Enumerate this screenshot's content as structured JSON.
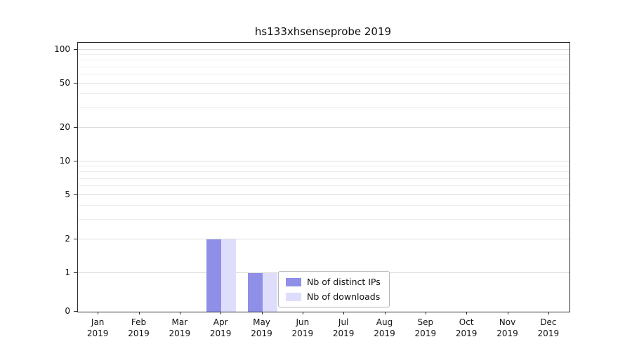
{
  "title": "hs133xhsenseprobe 2019",
  "colors": {
    "distinct_ips": "#8f8fe8",
    "downloads": "#dedefc",
    "major_grid": "#dcdcdc",
    "minor_grid": "#ededed",
    "axis": "#2a2a2a"
  },
  "legend": {
    "entries": [
      {
        "label": "Nb of distinct IPs",
        "color_key": "distinct_ips"
      },
      {
        "label": "Nb of downloads",
        "color_key": "downloads"
      }
    ]
  },
  "chart_data": {
    "type": "bar",
    "title": "hs133xhsenseprobe 2019",
    "categories": [
      "Jan",
      "Feb",
      "Mar",
      "Apr",
      "May",
      "Jun",
      "Jul",
      "Aug",
      "Sep",
      "Oct",
      "Nov",
      "Dec"
    ],
    "category_year": "2019",
    "series": [
      {
        "name": "Nb of distinct IPs",
        "values": [
          0,
          0,
          0,
          2,
          1,
          0,
          0,
          0,
          0,
          0,
          0,
          0
        ]
      },
      {
        "name": "Nb of downloads",
        "values": [
          0,
          0,
          0,
          2,
          1,
          0,
          0,
          0,
          0,
          0,
          0,
          0
        ]
      }
    ],
    "yticks": [
      0,
      1,
      2,
      5,
      10,
      20,
      50,
      100
    ],
    "minor_yticks": [
      3,
      4,
      6,
      7,
      8,
      9,
      30,
      40,
      60,
      70,
      80,
      90
    ],
    "xlabel": "",
    "ylabel": "",
    "ylim": [
      0,
      115
    ],
    "yscale": "symlog",
    "grid": true,
    "legend_position": "lower-center-inside"
  }
}
